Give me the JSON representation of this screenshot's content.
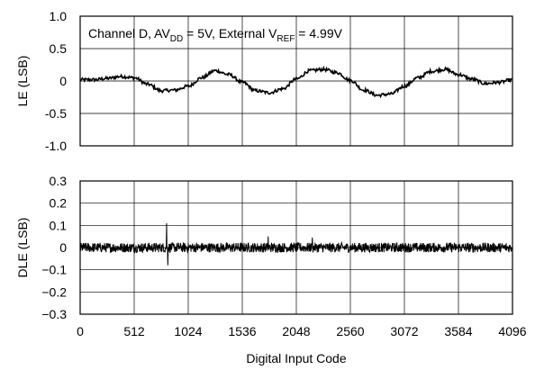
{
  "chart_data": [
    {
      "type": "line",
      "title": "",
      "annotation": {
        "parts": [
          {
            "t": "Channel D, AV",
            "sub": false
          },
          {
            "t": "DD",
            "sub": true
          },
          {
            "t": " = 5V, External V",
            "sub": false
          },
          {
            "t": "REF",
            "sub": true
          },
          {
            "t": " = 4.99V",
            "sub": false
          }
        ]
      },
      "xlabel": "",
      "ylabel": "LE (LSB)",
      "xlim": [
        0,
        4096
      ],
      "ylim": [
        -1.0,
        1.0
      ],
      "yticks": [
        1.0,
        0.5,
        0,
        -0.5,
        -1.0
      ],
      "ytick_labels": [
        "1.0",
        "0.5",
        "0",
        "-0.5",
        "-1.0"
      ],
      "grid": true,
      "series": [
        {
          "x": [
            0,
            128,
            256,
            384,
            512,
            640,
            768,
            896,
            1024,
            1152,
            1280,
            1408,
            1536,
            1664,
            1792,
            1920,
            2048,
            2176,
            2304,
            2432,
            2560,
            2688,
            2816,
            2944,
            3072,
            3200,
            3328,
            3456,
            3584,
            3712,
            3840,
            3968,
            4095
          ],
          "y": [
            0.02,
            0.02,
            0.04,
            0.07,
            0.05,
            -0.05,
            -0.15,
            -0.14,
            -0.08,
            0.05,
            0.16,
            0.1,
            -0.02,
            -0.15,
            -0.18,
            -0.12,
            0.03,
            0.16,
            0.18,
            0.13,
            0.01,
            -0.14,
            -0.22,
            -0.2,
            -0.08,
            0.05,
            0.15,
            0.18,
            0.1,
            0.03,
            -0.04,
            -0.02,
            0.02
          ],
          "noise": 0.025
        }
      ]
    },
    {
      "type": "line",
      "title": "",
      "xlabel": "Digital Input Code",
      "ylabel": "DLE (LSB)",
      "xlim": [
        0,
        4096
      ],
      "ylim": [
        -0.3,
        0.3
      ],
      "xticks": [
        0,
        512,
        1024,
        1536,
        2048,
        2560,
        3072,
        3584,
        4096
      ],
      "yticks": [
        0.3,
        0.2,
        0.1,
        0,
        -0.1,
        -0.2,
        -0.3
      ],
      "ytick_labels": [
        "0.3",
        "0.2",
        "0.1",
        "0",
        "−0.1",
        "−0.2",
        "−0.3"
      ],
      "grid": true,
      "series": [
        {
          "baseline": 0.0,
          "noise": 0.022,
          "spikes": [
            {
              "x": 820,
              "y": 0.11
            },
            {
              "x": 830,
              "y": -0.08
            },
            {
              "x": 1780,
              "y": 0.05
            },
            {
              "x": 2200,
              "y": 0.045
            }
          ]
        }
      ]
    }
  ]
}
